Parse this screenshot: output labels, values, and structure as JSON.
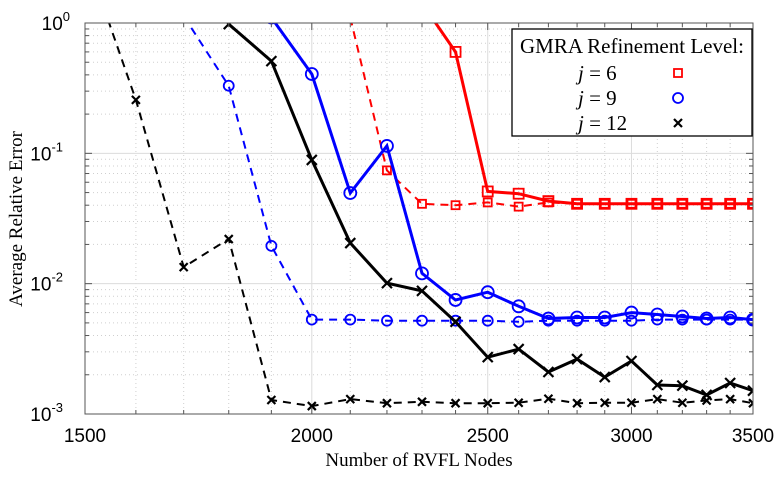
{
  "chart_data": {
    "type": "line",
    "title": "",
    "xlabel": "Number of RVFL Nodes",
    "ylabel": "Average Relative Error",
    "xscale": "log",
    "yscale": "log",
    "xlim": [
      1500,
      3500
    ],
    "ylim": [
      0.001,
      1
    ],
    "xticks": [
      1500,
      2000,
      2500,
      3000,
      3500
    ],
    "xtick_labels": [
      "1500",
      "2000",
      "2500",
      "3000",
      "3500"
    ],
    "yticks": [
      1,
      0.1,
      0.01,
      0.001
    ],
    "ytick_labels": [
      {
        "base": "10",
        "exp": "0"
      },
      {
        "base": "10",
        "exp": "-1"
      },
      {
        "base": "10",
        "exp": "-2"
      },
      {
        "base": "10",
        "exp": "-3"
      }
    ],
    "grid": true,
    "legend": {
      "title": "GMRA Refinement Level:",
      "placement": "top-right",
      "entries": [
        {
          "label": "j = 6",
          "italic": "j",
          "rest": " = 6",
          "color": "#ff0000",
          "marker": "square"
        },
        {
          "label": "j = 9",
          "italic": "j",
          "rest": " = 9",
          "color": "#0000ff",
          "marker": "circle"
        },
        {
          "label": "j = 12",
          "italic": "j",
          "rest": " = 12",
          "color": "#000000",
          "marker": "x"
        }
      ]
    },
    "series": [
      {
        "level": "j = 6",
        "style": "solid",
        "color": "#ff0000",
        "marker": "square",
        "x": [
          2300,
          2400,
          2500,
          2600,
          2700,
          2800,
          2900,
          3000,
          3100,
          3200,
          3300,
          3400,
          3500
        ],
        "y": [
          1.42,
          0.6,
          0.051,
          0.049,
          0.043,
          0.041,
          0.041,
          0.041,
          0.041,
          0.041,
          0.041,
          0.041,
          0.041
        ]
      },
      {
        "level": "j = 6",
        "style": "dashed",
        "color": "#ff0000",
        "marker": "square",
        "x": [
          2100,
          2200,
          2300,
          2400,
          2500,
          2600,
          2700,
          2800,
          2900,
          3000,
          3100,
          3200,
          3300,
          3400,
          3500
        ],
        "y": [
          1.1,
          0.074,
          0.041,
          0.04,
          0.042,
          0.039,
          0.042,
          0.041,
          0.041,
          0.041,
          0.041,
          0.041,
          0.041,
          0.041,
          0.041
        ]
      },
      {
        "level": "j = 9",
        "style": "solid",
        "color": "#0000ff",
        "marker": "circle",
        "x": [
          1900,
          2000,
          2100,
          2200,
          2300,
          2400,
          2500,
          2600,
          2700,
          2800,
          2900,
          3000,
          3100,
          3200,
          3300,
          3400,
          3500
        ],
        "y": [
          1.1,
          0.406,
          0.0496,
          0.114,
          0.012,
          0.0075,
          0.0086,
          0.0067,
          0.0054,
          0.0055,
          0.0055,
          0.006,
          0.0058,
          0.0056,
          0.0054,
          0.0055,
          0.0053
        ]
      },
      {
        "level": "j = 9",
        "style": "dashed",
        "color": "#0000ff",
        "marker": "circle",
        "x": [
          1700,
          1800,
          1900,
          2000,
          2100,
          2200,
          2300,
          2400,
          2500,
          2600,
          2700,
          2800,
          2900,
          3000,
          3100,
          3200,
          3300,
          3400,
          3500
        ],
        "y": [
          1.13,
          0.33,
          0.0195,
          0.0053,
          0.0053,
          0.0052,
          0.0052,
          0.0052,
          0.0052,
          0.0051,
          0.0052,
          0.0052,
          0.0052,
          0.0052,
          0.0053,
          0.0053,
          0.0053,
          0.0053,
          0.0053
        ]
      },
      {
        "level": "j = 12",
        "style": "solid",
        "color": "#000000",
        "marker": "x",
        "x": [
          1800,
          1900,
          2000,
          2100,
          2200,
          2300,
          2400,
          2500,
          2600,
          2700,
          2800,
          2900,
          3000,
          3100,
          3200,
          3300,
          3400,
          3500
        ],
        "y": [
          0.98,
          0.51,
          0.089,
          0.0205,
          0.0101,
          0.0088,
          0.0051,
          0.00273,
          0.00315,
          0.0021,
          0.00264,
          0.00192,
          0.00255,
          0.00167,
          0.00165,
          0.0014,
          0.00173,
          0.00151
        ]
      },
      {
        "level": "j = 12",
        "style": "dashed",
        "color": "#000000",
        "marker": "x",
        "x": [
          1500,
          1600,
          1700,
          1800,
          1900,
          2000,
          2100,
          2200,
          2300,
          2400,
          2500,
          2600,
          2700,
          2800,
          2900,
          3000,
          3100,
          3200,
          3300,
          3400,
          3500
        ],
        "y": [
          3.4,
          0.257,
          0.0134,
          0.022,
          0.00128,
          0.00115,
          0.0013,
          0.00121,
          0.00124,
          0.00121,
          0.00121,
          0.00122,
          0.00131,
          0.00121,
          0.00122,
          0.00122,
          0.0013,
          0.00122,
          0.00127,
          0.0013,
          0.00121
        ]
      }
    ]
  }
}
